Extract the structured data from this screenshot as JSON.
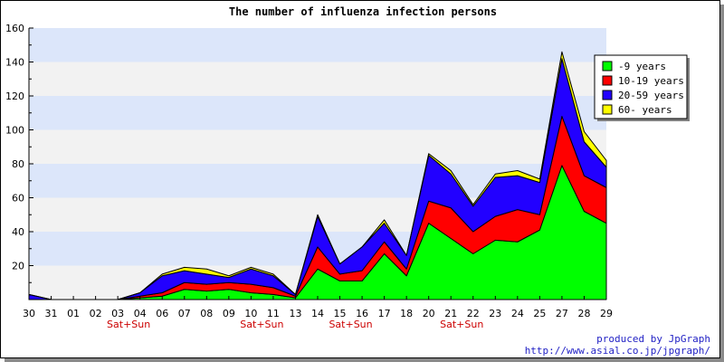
{
  "chart_data": {
    "type": "area",
    "stacked": true,
    "title": "The number of influenza infection persons",
    "xlabel": "",
    "ylabel": "",
    "ylim": [
      0,
      160
    ],
    "yticks": [
      20,
      40,
      60,
      80,
      100,
      120,
      140,
      160
    ],
    "grid": "alternating horizontal bands",
    "legend_position": "top-right",
    "categories": [
      "30",
      "31",
      "01",
      "02",
      "03",
      "04",
      "06",
      "07",
      "08",
      "09",
      "10",
      "11",
      "13",
      "14",
      "15",
      "16",
      "17",
      "18",
      "20",
      "21",
      "22",
      "23",
      "24",
      "25",
      "27",
      "28",
      "29"
    ],
    "annotations": [
      {
        "category": "03",
        "text": "Sat+Sun"
      },
      {
        "category": "10",
        "text": "Sat+Sun"
      },
      {
        "category": "15",
        "text": "Sat+Sun"
      },
      {
        "category": "21",
        "text": "Sat+Sun"
      }
    ],
    "series": [
      {
        "name": "-9 years",
        "color": "#00ff00",
        "values": [
          0,
          0,
          0,
          0,
          0,
          1,
          2,
          6,
          5,
          6,
          4,
          3,
          1,
          18,
          11,
          11,
          27,
          14,
          45,
          36,
          27,
          35,
          34,
          41,
          79,
          52,
          45
        ]
      },
      {
        "name": "10-19 years",
        "color": "#ff0000",
        "values": [
          0,
          0,
          0,
          0,
          0,
          1,
          2,
          4,
          4,
          4,
          5,
          4,
          1,
          13,
          4,
          6,
          7,
          4,
          13,
          18,
          13,
          14,
          19,
          9,
          29,
          21,
          21
        ]
      },
      {
        "name": "20-59 years",
        "color": "#2200ff",
        "values": [
          3,
          0,
          0,
          0,
          0,
          2,
          10,
          7,
          6,
          3,
          9,
          7,
          1,
          18,
          6,
          14,
          11,
          8,
          27,
          20,
          15,
          23,
          20,
          19,
          34,
          20,
          12
        ]
      },
      {
        "name": "60- years",
        "color": "#ffff00",
        "values": [
          0,
          0,
          0,
          0,
          0,
          0,
          1,
          2,
          3,
          1,
          1,
          1,
          0,
          1,
          0,
          0,
          2,
          0,
          1,
          2,
          1,
          2,
          3,
          2,
          4,
          6,
          4
        ]
      }
    ]
  },
  "footer": {
    "credit_line1": "produced by JpGraph",
    "credit_line2": "http://www.asial.co.jp/jpgraph/"
  }
}
